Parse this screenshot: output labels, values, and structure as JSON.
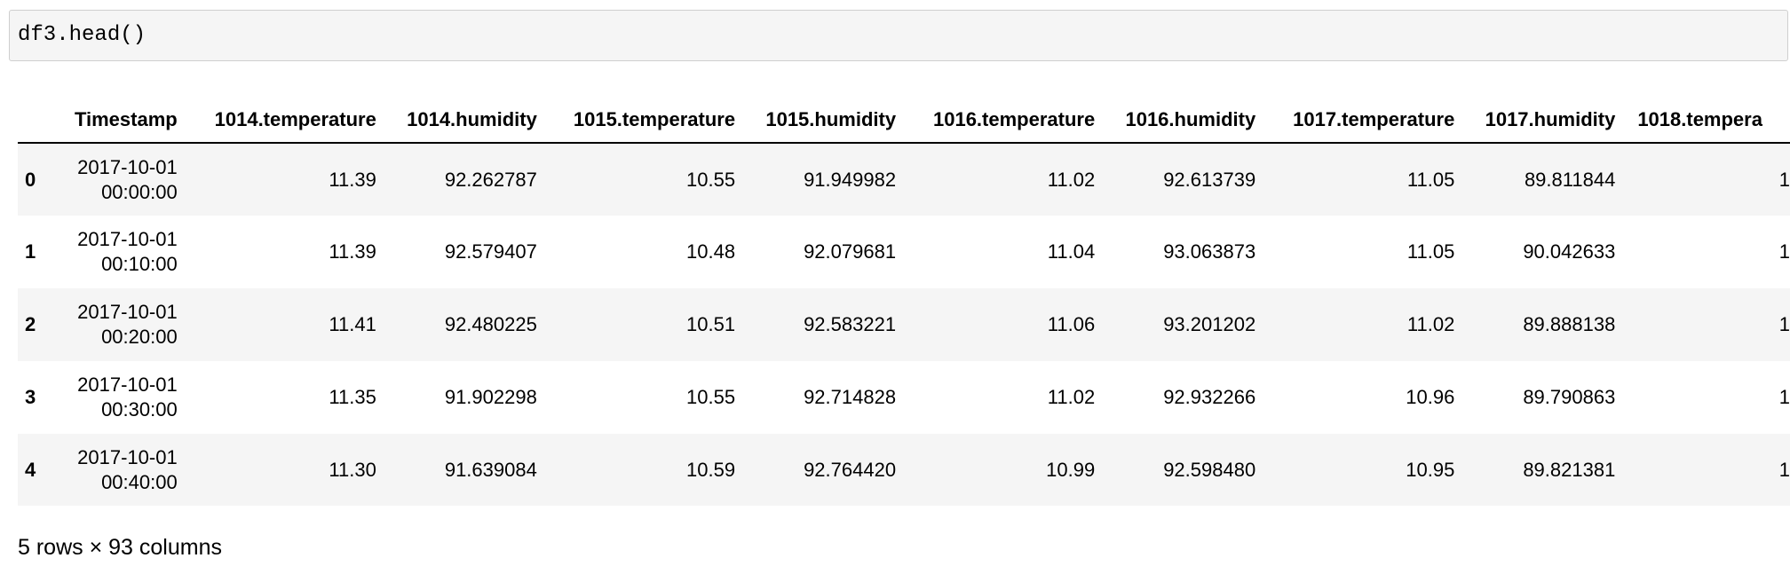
{
  "code_cell": {
    "source": "df3.head()"
  },
  "dataframe": {
    "columns": [
      "Timestamp",
      "1014.temperature",
      "1014.humidity",
      "1015.temperature",
      "1015.humidity",
      "1016.temperature",
      "1016.humidity",
      "1017.temperature",
      "1017.humidity",
      "1018.tempera"
    ],
    "rows": [
      {
        "index": "0",
        "timestamp_date": "2017-10-01",
        "timestamp_time": "00:00:00",
        "values": [
          "11.39",
          "92.262787",
          "10.55",
          "91.949982",
          "11.02",
          "92.613739",
          "11.05",
          "89.811844",
          "1"
        ]
      },
      {
        "index": "1",
        "timestamp_date": "2017-10-01",
        "timestamp_time": "00:10:00",
        "values": [
          "11.39",
          "92.579407",
          "10.48",
          "92.079681",
          "11.04",
          "93.063873",
          "11.05",
          "90.042633",
          "1"
        ]
      },
      {
        "index": "2",
        "timestamp_date": "2017-10-01",
        "timestamp_time": "00:20:00",
        "values": [
          "11.41",
          "92.480225",
          "10.51",
          "92.583221",
          "11.06",
          "93.201202",
          "11.02",
          "89.888138",
          "1"
        ]
      },
      {
        "index": "3",
        "timestamp_date": "2017-10-01",
        "timestamp_time": "00:30:00",
        "values": [
          "11.35",
          "91.902298",
          "10.55",
          "92.714828",
          "11.02",
          "92.932266",
          "10.96",
          "89.790863",
          "1"
        ]
      },
      {
        "index": "4",
        "timestamp_date": "2017-10-01",
        "timestamp_time": "00:40:00",
        "values": [
          "11.30",
          "91.639084",
          "10.59",
          "92.764420",
          "10.99",
          "92.598480",
          "10.95",
          "89.821381",
          "1"
        ]
      }
    ],
    "footer": "5 rows × 93 columns"
  },
  "colors": {
    "cell_background": "#f5f5f5",
    "cell_border": "#cfcfcf",
    "row_stripe": "#f5f5f5"
  }
}
